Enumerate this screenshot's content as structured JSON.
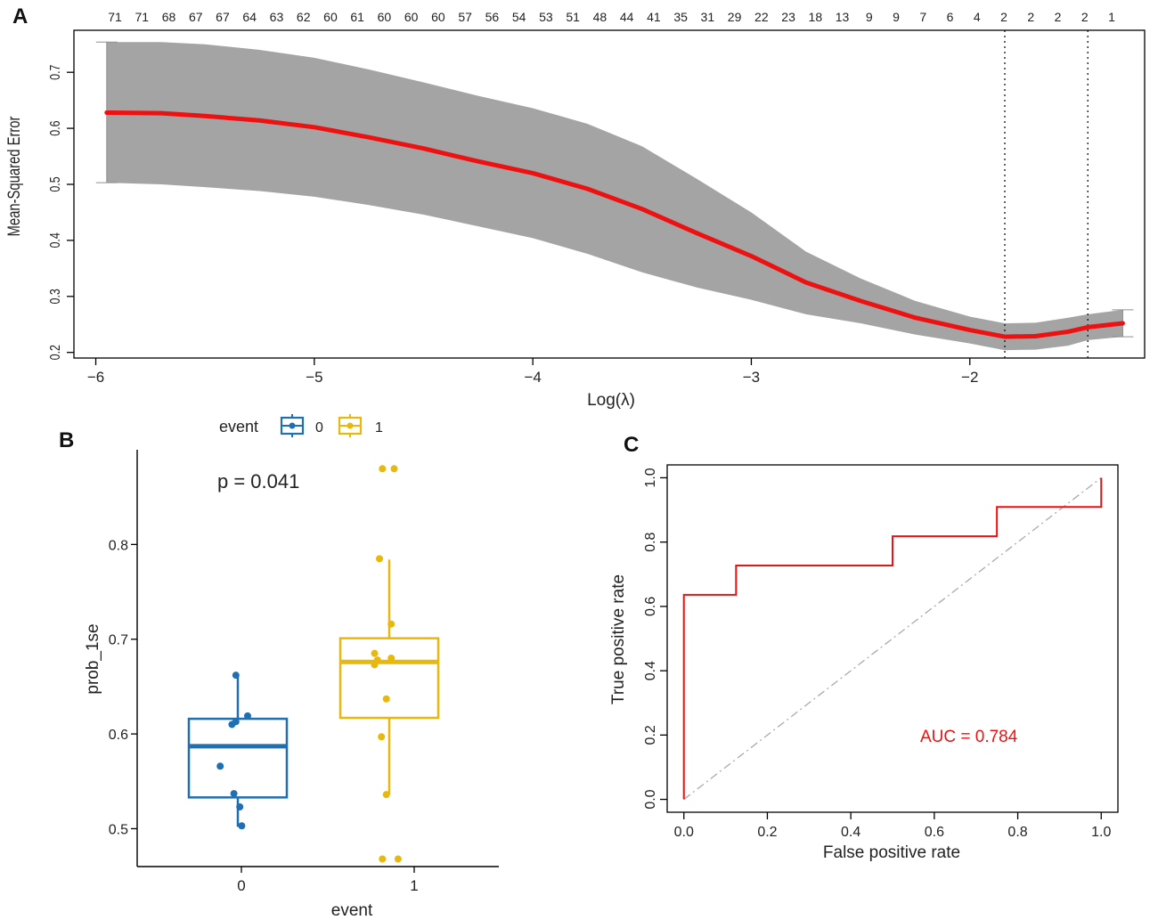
{
  "chart_data": [
    {
      "panel": "A",
      "type": "line",
      "xlabel": "Log(λ)",
      "ylabel": "Mean-Squared Error",
      "xlim": [
        -6.1,
        -1.2
      ],
      "ylim": [
        0.19,
        0.775
      ],
      "x_ticks": [
        -6,
        -5,
        -4,
        -3,
        -2
      ],
      "y_ticks": [
        0.2,
        0.3,
        0.4,
        0.5,
        0.6,
        0.7
      ],
      "top_counts": [
        71,
        71,
        68,
        67,
        67,
        64,
        63,
        62,
        60,
        61,
        60,
        60,
        60,
        57,
        56,
        54,
        53,
        51,
        48,
        44,
        41,
        35,
        31,
        29,
        22,
        23,
        18,
        13,
        9,
        9,
        7,
        6,
        4,
        2,
        2,
        2,
        2,
        1
      ],
      "vlines_x": [
        -1.84,
        -1.46
      ],
      "series": [
        {
          "name": "mean",
          "color": "#ee1111",
          "x": [
            -5.95,
            -5.7,
            -5.5,
            -5.25,
            -5.0,
            -4.75,
            -4.5,
            -4.25,
            -4.0,
            -3.75,
            -3.5,
            -3.25,
            -3.0,
            -2.75,
            -2.5,
            -2.25,
            -2.0,
            -1.84,
            -1.7,
            -1.55,
            -1.46,
            -1.3
          ],
          "y": [
            0.628,
            0.627,
            0.622,
            0.614,
            0.602,
            0.584,
            0.564,
            0.541,
            0.52,
            0.492,
            0.456,
            0.413,
            0.372,
            0.325,
            0.292,
            0.262,
            0.24,
            0.228,
            0.229,
            0.237,
            0.245,
            0.252
          ]
        },
        {
          "name": "upper",
          "x": [
            -5.95,
            -5.7,
            -5.5,
            -5.25,
            -5.0,
            -4.75,
            -4.5,
            -4.25,
            -4.0,
            -3.75,
            -3.5,
            -3.25,
            -3.0,
            -2.75,
            -2.5,
            -2.25,
            -2.0,
            -1.84,
            -1.7,
            -1.55,
            -1.46,
            -1.3
          ],
          "y": [
            0.754,
            0.754,
            0.75,
            0.74,
            0.726,
            0.705,
            0.682,
            0.658,
            0.636,
            0.608,
            0.568,
            0.51,
            0.45,
            0.38,
            0.332,
            0.292,
            0.264,
            0.252,
            0.253,
            0.262,
            0.268,
            0.276
          ]
        },
        {
          "name": "lower",
          "x": [
            -5.95,
            -5.7,
            -5.5,
            -5.25,
            -5.0,
            -4.75,
            -4.5,
            -4.25,
            -4.0,
            -3.75,
            -3.5,
            -3.25,
            -3.0,
            -2.75,
            -2.5,
            -2.25,
            -2.0,
            -1.84,
            -1.7,
            -1.55,
            -1.46,
            -1.3
          ],
          "y": [
            0.503,
            0.5,
            0.495,
            0.488,
            0.478,
            0.463,
            0.446,
            0.425,
            0.404,
            0.376,
            0.343,
            0.316,
            0.294,
            0.268,
            0.252,
            0.232,
            0.216,
            0.204,
            0.205,
            0.212,
            0.222,
            0.228
          ]
        }
      ]
    },
    {
      "panel": "B",
      "type": "box",
      "xlabel": "event",
      "ylabel": "prob_1se",
      "legend_title": "event",
      "legend": [
        "0",
        "1"
      ],
      "categories": [
        "0",
        "1"
      ],
      "colors": [
        "#1f6fb3",
        "#e8b80c"
      ],
      "ylim": [
        0.46,
        0.9
      ],
      "y_ticks": [
        0.5,
        0.6,
        0.7,
        0.8
      ],
      "annotation": "p = 0.041",
      "boxes": [
        {
          "group": "0",
          "min": 0.502,
          "q1": 0.533,
          "median": 0.587,
          "q3": 0.616,
          "max": 0.663
        },
        {
          "group": "1",
          "min": 0.536,
          "q1": 0.617,
          "median": 0.676,
          "q3": 0.701,
          "max": 0.784
        }
      ],
      "points": [
        {
          "group": "0",
          "jitter": -0.18,
          "y": 0.566
        },
        {
          "group": "0",
          "jitter": -0.04,
          "y": 0.537
        },
        {
          "group": "0",
          "jitter": -0.06,
          "y": 0.61
        },
        {
          "group": "0",
          "jitter": -0.02,
          "y": 0.613
        },
        {
          "group": "0",
          "jitter": 0.1,
          "y": 0.619
        },
        {
          "group": "0",
          "jitter": 0.02,
          "y": 0.523
        },
        {
          "group": "0",
          "jitter": 0.04,
          "y": 0.503
        },
        {
          "group": "0",
          "jitter": -0.02,
          "y": 0.662
        },
        {
          "group": "1",
          "jitter": -0.07,
          "y": 0.88
        },
        {
          "group": "1",
          "jitter": 0.05,
          "y": 0.88
        },
        {
          "group": "1",
          "jitter": -0.1,
          "y": 0.785
        },
        {
          "group": "1",
          "jitter": 0.02,
          "y": 0.716
        },
        {
          "group": "1",
          "jitter": -0.15,
          "y": 0.673
        },
        {
          "group": "1",
          "jitter": -0.12,
          "y": 0.678
        },
        {
          "group": "1",
          "jitter": -0.15,
          "y": 0.685
        },
        {
          "group": "1",
          "jitter": 0.02,
          "y": 0.68
        },
        {
          "group": "1",
          "jitter": -0.03,
          "y": 0.637
        },
        {
          "group": "1",
          "jitter": -0.08,
          "y": 0.597
        },
        {
          "group": "1",
          "jitter": -0.03,
          "y": 0.536
        },
        {
          "group": "1",
          "jitter": -0.07,
          "y": 0.468
        },
        {
          "group": "1",
          "jitter": 0.09,
          "y": 0.468
        }
      ]
    },
    {
      "panel": "C",
      "type": "line",
      "xlabel": "False positive rate",
      "ylabel": "True positive rate",
      "xlim": [
        -0.04,
        1.04
      ],
      "ylim": [
        -0.04,
        1.04
      ],
      "x_ticks": [
        0.0,
        0.2,
        0.4,
        0.6,
        0.8,
        1.0
      ],
      "y_ticks": [
        0.0,
        0.2,
        0.4,
        0.6,
        0.8,
        1.0
      ],
      "annotation": "AUC  = 0.784",
      "series": [
        {
          "name": "ROC",
          "color": "#ee1111",
          "x": [
            0.0,
            0.0,
            0.125,
            0.125,
            0.5,
            0.5,
            0.75,
            0.75,
            1.0,
            1.0
          ],
          "y": [
            0.0,
            0.636,
            0.636,
            0.727,
            0.727,
            0.818,
            0.818,
            0.909,
            0.909,
            1.0
          ]
        },
        {
          "name": "chance",
          "color": "#aaaaaa",
          "x": [
            0.0,
            1.0
          ],
          "y": [
            0.0,
            1.0
          ]
        }
      ]
    }
  ],
  "panel_labels": [
    "A",
    "B",
    "C"
  ]
}
